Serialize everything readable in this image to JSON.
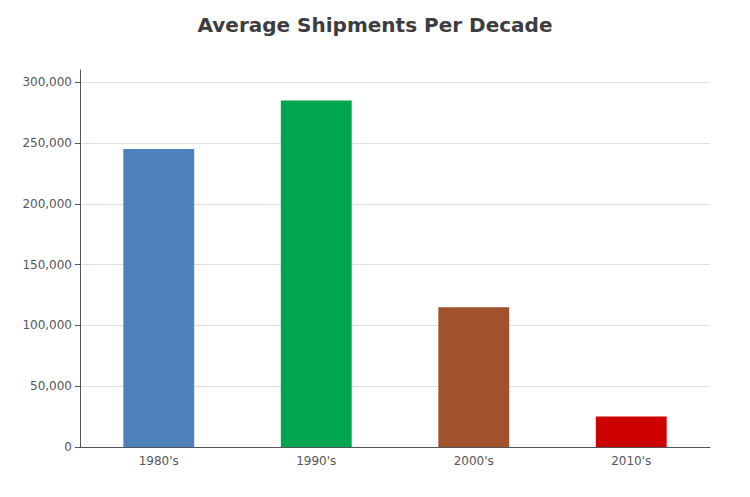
{
  "chart_data": {
    "type": "bar",
    "title": "Average Shipments Per Decade",
    "categories": [
      "1980's",
      "1990's",
      "2000's",
      "2010's"
    ],
    "values": [
      245000,
      285000,
      115000,
      25000
    ],
    "colors": [
      "#4F81BD",
      "#00A550",
      "#A0522D",
      "#CC0000"
    ],
    "ylim": [
      0,
      310000
    ],
    "yticks": [
      0,
      {
        "value": 50000,
        "label": "50,000"
      },
      {
        "value": 100000,
        "label": "100,000"
      },
      {
        "value": 150000,
        "label": "150,000"
      },
      {
        "value": 200000,
        "label": "200,000"
      },
      {
        "value": 250000,
        "label": "250,000"
      },
      {
        "value": 300000,
        "label": "300,000"
      }
    ],
    "grid": true
  }
}
